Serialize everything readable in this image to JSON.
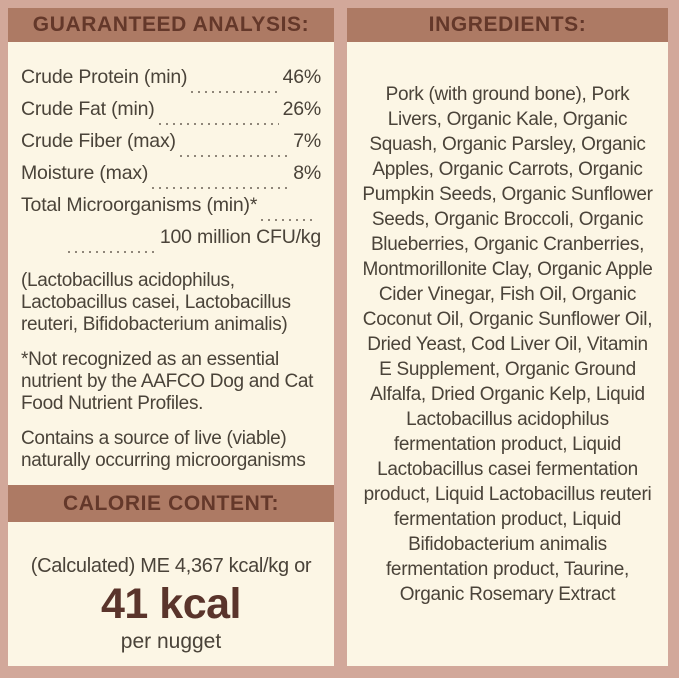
{
  "colors": {
    "frame_pink": "#d2a89a",
    "panel_cream": "#fcf6e5",
    "header_bar": "#ad7a64",
    "header_text": "#64382a",
    "body_text": "#4a4339",
    "accent_text": "#5a342b",
    "dot_leader": "#8f8679"
  },
  "guaranteed_analysis": {
    "title": "GUARANTEED ANALYSIS:",
    "rows": [
      {
        "label": "Crude Protein (min)",
        "value": "46%"
      },
      {
        "label": "Crude Fat (min)",
        "value": "26%"
      },
      {
        "label": "Crude Fiber (max)",
        "value": "7%"
      },
      {
        "label": "Moisture (max)",
        "value": "8%"
      }
    ],
    "microorganisms": {
      "label": "Total Microorganisms (min)*",
      "value": "100 million CFU/kg"
    },
    "notes": [
      "(Lactobacillus acidophilus, Lactobacillus casei, Lactobacillus reuteri, Bifidobacterium animalis)",
      "*Not recognized as an essential nutrient by the AAFCO Dog and Cat Food Nutrient Profiles.",
      "Contains a source of live (viable) naturally occurring microorganisms"
    ]
  },
  "calorie_content": {
    "title": "CALORIE CONTENT:",
    "line1": "(Calculated) ME 4,367 kcal/kg or",
    "big_value": "41 kcal",
    "line2": "per nugget"
  },
  "ingredients": {
    "title": "INGREDIENTS:",
    "text": "Pork (with ground bone), Pork Livers, Organic Kale, Organic Squash, Organic Parsley, Organic Apples, Organic Carrots, Organic Pumpkin Seeds, Organic Sunflower Seeds, Organic Broccoli, Organic Blueberries, Organic Cranberries, Montmorillonite Clay, Organic Apple Cider Vinegar, Fish Oil, Organic Coconut Oil, Organic Sunflower Oil, Dried Yeast, Cod Liver Oil, Vitamin E Supplement, Organic Ground Alfalfa, Dried Organic Kelp, Liquid Lactobacillus acidophilus fermentation product, Liquid Lactobacillus casei fermentation product, Liquid Lactobacillus reuteri fermentation product, Liquid Bifidobacterium animalis fermentation product, Taurine, Organic Rosemary Extract"
  }
}
